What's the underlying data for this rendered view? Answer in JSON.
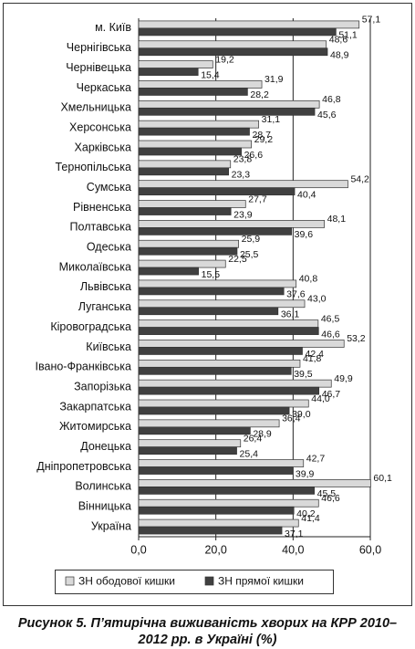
{
  "chart_data": {
    "type": "hbar",
    "title": "Рисунок 5. П’ятирічна виживаність хворих на КРР 2010–2012 рр. в Україні (%)",
    "categories": [
      "м. Київ",
      "Чернігівська",
      "Чернівецька",
      "Черкаська",
      "Хмельницька",
      "Херсонська",
      "Харківська",
      "Тернопільська",
      "Сумська",
      "Рівненська",
      "Полтавська",
      "Одеська",
      "Миколаївська",
      "Львівська",
      "Луганська",
      "Кіровоградська",
      "Київська",
      "Івано-Франківська",
      "Запорізька",
      "Закарпатська",
      "Житомирська",
      "Донецька",
      "Дніпропетровська",
      "Волинська",
      "Вінницька",
      "Україна"
    ],
    "series": [
      {
        "name": "ЗН ободової кишки",
        "color": "#d9d9d9",
        "values": [
          57.1,
          48.6,
          19.2,
          31.9,
          46.8,
          31.1,
          29.2,
          23.8,
          54.2,
          27.7,
          48.1,
          25.9,
          22.5,
          40.8,
          43.0,
          46.5,
          53.2,
          41.8,
          49.9,
          44.0,
          36.4,
          26.4,
          42.7,
          60.1,
          46.6,
          41.4
        ],
        "value_labels": [
          "57,1",
          "48,6",
          "19,2",
          "31,9",
          "46,8",
          "31,1",
          "29,2",
          "23,8",
          "54,2",
          "27,7",
          "48,1",
          "25,9",
          "22,5",
          "40,8",
          "43,0",
          "46,5",
          "53,2",
          "41,8",
          "49,9",
          "44,0",
          "36,4",
          "26,4",
          "42,7",
          "60,1",
          "46,6",
          "41,4"
        ]
      },
      {
        "name": "ЗН прямої кишки",
        "color": "#404040",
        "values": [
          51.1,
          48.9,
          15.4,
          28.2,
          45.6,
          28.7,
          26.6,
          23.3,
          40.4,
          23.9,
          39.6,
          25.5,
          15.5,
          37.6,
          36.1,
          46.6,
          42.4,
          39.5,
          46.7,
          39.0,
          28.9,
          25.4,
          39.9,
          45.5,
          40.2,
          37.1
        ],
        "value_labels": [
          "51,1",
          "48,9",
          "15,4",
          "28,2",
          "45,6",
          "28,7",
          "26,6",
          "23,3",
          "40,4",
          "23,9",
          "39,6",
          "25,5",
          "15,5",
          "37,6",
          "36,1",
          "46,6",
          "42,4",
          "39,5",
          "46,7",
          "39,0",
          "28,9",
          "25,4",
          "39,9",
          "45,5",
          "40,2",
          "37,1"
        ]
      }
    ],
    "xlim": [
      0,
      60
    ],
    "xticks": [
      {
        "value": 0,
        "label": "0,0"
      },
      {
        "value": 20,
        "label": "20,0"
      },
      {
        "value": 40,
        "label": "40,0"
      },
      {
        "value": 60,
        "label": "60,0"
      }
    ],
    "grid": true
  }
}
